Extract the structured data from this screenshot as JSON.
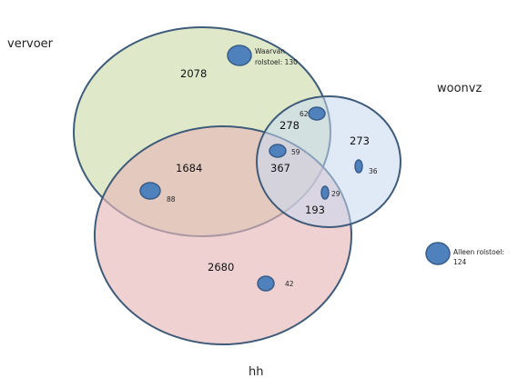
{
  "sets": {
    "vervoer": {
      "label": "vervoer",
      "fill": "#d7e4bd",
      "stroke": "#3e5b7a"
    },
    "woonvz": {
      "label": "woonvz",
      "fill": "#c6d9f1",
      "stroke": "#3e5b7a"
    },
    "hh": {
      "label": "hh",
      "fill": "#e6b9b8",
      "stroke": "#3e5b7a"
    }
  },
  "regions": {
    "vervoer_only": "2078",
    "woonvz_only": "273",
    "hh_only": "2680",
    "vervoer_hh": "1684",
    "vervoer_woonvz": "278",
    "woonvz_hh": "193",
    "all_three": "367"
  },
  "wheelchair": {
    "vervoer_only": {
      "line1": "Waarvan",
      "line2": "rolstoel: 130"
    },
    "vervoer_woonvz": "62",
    "all_three": "59",
    "woonvz_only": "36",
    "woonvz_hh": "29",
    "vervoer_hh": "88",
    "hh_only": "42",
    "alone": {
      "line1": "Alleen rolstoel:",
      "line2": "124"
    }
  },
  "colors": {
    "marker_fill": "#4f81bd",
    "marker_stroke": "#385d8a"
  }
}
